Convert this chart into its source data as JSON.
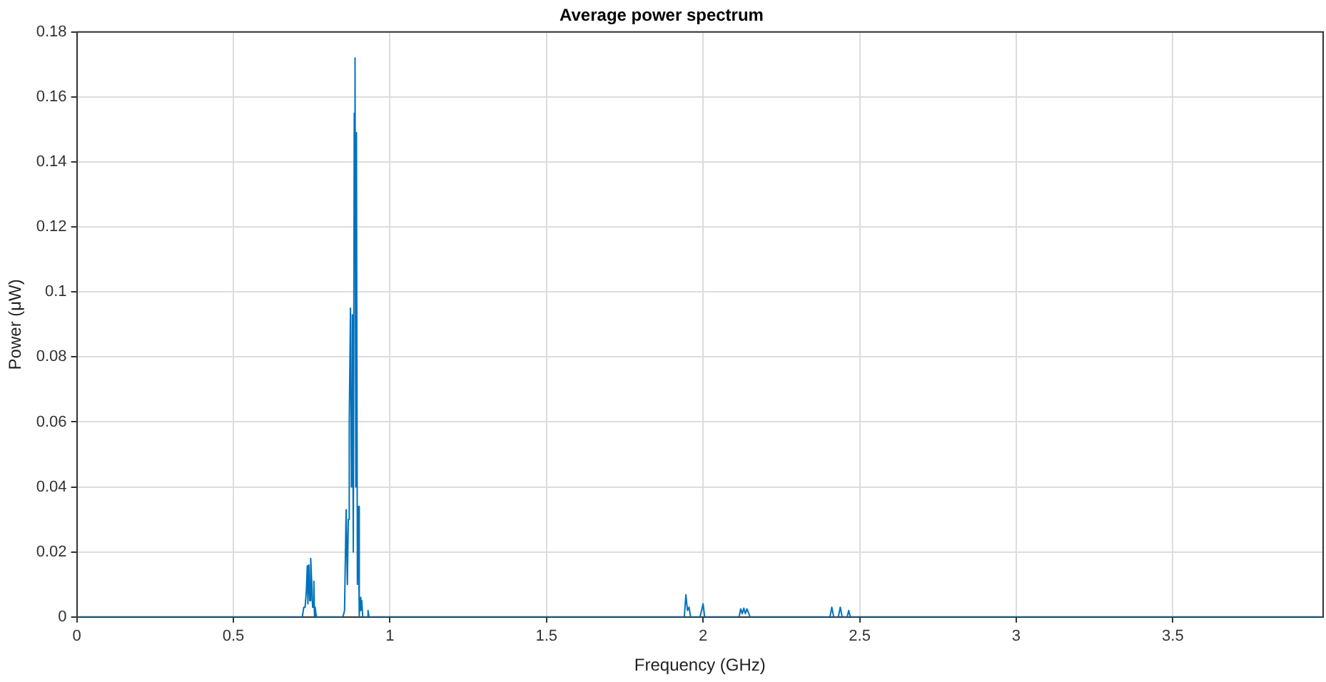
{
  "chart_data": {
    "type": "line",
    "title": "Average power spectrum",
    "xlabel": "Frequency (GHz)",
    "ylabel": "Power (μW)",
    "x": [
      0,
      0.72,
      0.725,
      0.729,
      0.733,
      0.736,
      0.738,
      0.741,
      0.744,
      0.747,
      0.75,
      0.753,
      0.757,
      0.759,
      0.761,
      0.765,
      0.85,
      0.855,
      0.86,
      0.864,
      0.867,
      0.87,
      0.874,
      0.877,
      0.88,
      0.883,
      0.886,
      0.888,
      0.889,
      0.891,
      0.893,
      0.896,
      0.899,
      0.902,
      0.904,
      0.907,
      0.91,
      0.913,
      0.927,
      0.93,
      0.933,
      1.94,
      1.945,
      1.95,
      1.955,
      1.96,
      1.99,
      1.995,
      2.0,
      2.005,
      2.115,
      2.12,
      2.125,
      2.13,
      2.135,
      2.14,
      2.146,
      2.15,
      2.405,
      2.411,
      2.417,
      2.432,
      2.438,
      2.444,
      2.46,
      2.465,
      2.47,
      3.98
    ],
    "values": [
      0,
      0,
      0.003,
      0.003,
      0.008,
      0.0157,
      0.004,
      0.016,
      0.005,
      0.018,
      0.011,
      0.003,
      0.011,
      0,
      0.003,
      0,
      0,
      0.002,
      0.033,
      0.01,
      0.03,
      0.06,
      0.095,
      0.04,
      0.093,
      0.02,
      0.155,
      0.15,
      0.172,
      0.04,
      0.149,
      0.01,
      0.034,
      0,
      0.006,
      0.002,
      0.005,
      0,
      0,
      0.002,
      0,
      0,
      0.0068,
      0.002,
      0.003,
      0,
      0,
      0.002,
      0.004,
      0,
      0,
      0.0025,
      0.001,
      0.0027,
      0.001,
      0.0025,
      0.001,
      0,
      0,
      0.003,
      0,
      0,
      0.003,
      0,
      0,
      0.002,
      0,
      0
    ],
    "color": "#0072bd",
    "xlim": [
      0,
      3.98
    ],
    "ylim": [
      0,
      0.18
    ],
    "xticks": [
      0,
      0.5,
      1,
      1.5,
      2,
      2.5,
      3,
      3.5
    ],
    "yticks": [
      0,
      0.02,
      0.04,
      0.06,
      0.08,
      0.1,
      0.12,
      0.14,
      0.16,
      0.18
    ],
    "grid": true,
    "legend": false,
    "marker": "none",
    "line_style": "solid"
  }
}
